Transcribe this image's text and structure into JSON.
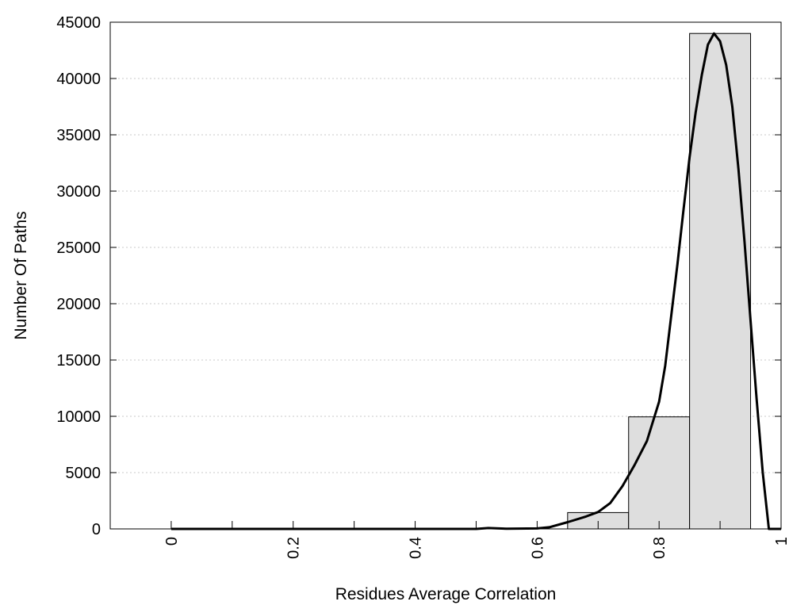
{
  "chart_data": {
    "type": "bar",
    "xlabel": "Residues Average Correlation",
    "ylabel": "Number Of Paths",
    "xlim": [
      -0.1,
      1.0
    ],
    "ylim": [
      0,
      45000
    ],
    "x_ticks": [
      0,
      0.2,
      0.4,
      0.6,
      0.8,
      1
    ],
    "x_minor_ticks": [
      0,
      0.1,
      0.2,
      0.3,
      0.4,
      0.5,
      0.6,
      0.7,
      0.8,
      0.9
    ],
    "y_ticks": [
      0,
      5000,
      10000,
      15000,
      20000,
      25000,
      30000,
      35000,
      40000,
      45000
    ],
    "grid": "horizontal-dotted",
    "bar_width": 0.1,
    "bars": [
      {
        "x": 0.0,
        "value": 0
      },
      {
        "x": 0.1,
        "value": 0
      },
      {
        "x": 0.2,
        "value": 0
      },
      {
        "x": 0.3,
        "value": 0
      },
      {
        "x": 0.4,
        "value": 0
      },
      {
        "x": 0.5,
        "value": 0
      },
      {
        "x": 0.6,
        "value": 0
      },
      {
        "x": 0.7,
        "value": 1450
      },
      {
        "x": 0.8,
        "value": 9950
      },
      {
        "x": 0.9,
        "value": 44000
      }
    ],
    "curve": {
      "x": [
        0,
        0.1,
        0.2,
        0.3,
        0.4,
        0.5,
        0.52,
        0.55,
        0.6,
        0.62,
        0.65,
        0.68,
        0.7,
        0.72,
        0.74,
        0.76,
        0.78,
        0.8,
        0.81,
        0.82,
        0.83,
        0.84,
        0.85,
        0.86,
        0.87,
        0.88,
        0.89,
        0.9,
        0.91,
        0.92,
        0.93,
        0.94,
        0.95,
        0.96,
        0.97,
        0.98,
        0.99,
        1.0
      ],
      "y": [
        0,
        0,
        0,
        0,
        0,
        0,
        80,
        20,
        40,
        150,
        600,
        1100,
        1500,
        2300,
        3800,
        5700,
        7800,
        11300,
        14500,
        19000,
        23500,
        28300,
        33000,
        37000,
        40300,
        43000,
        44000,
        43300,
        41200,
        37500,
        32000,
        25500,
        18500,
        11500,
        5000,
        0,
        0,
        0
      ],
      "color": "#000000"
    },
    "bar_fill": "#dedede",
    "bar_stroke": "#000000"
  }
}
